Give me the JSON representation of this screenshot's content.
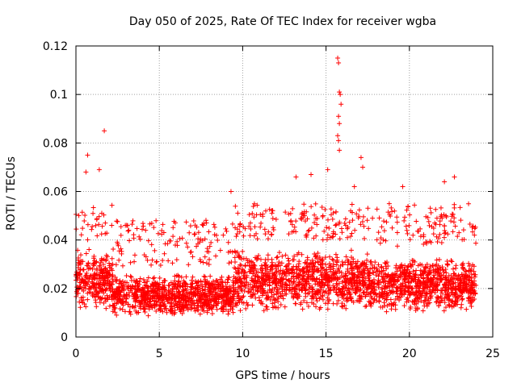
{
  "chart_data": {
    "type": "scatter",
    "title": "Day 050 of 2025, Rate Of TEC Index for receiver wgba",
    "xlabel": "GPS time / hours",
    "ylabel": "ROTI / TECUs",
    "xlim": [
      0,
      25
    ],
    "ylim": [
      0,
      0.12
    ],
    "xticks": [
      0,
      5,
      10,
      15,
      20,
      25
    ],
    "xtick_labels": [
      "0",
      "5",
      "10",
      "15",
      "20",
      "25"
    ],
    "yticks": [
      0,
      0.02,
      0.04,
      0.06,
      0.08,
      0.1,
      0.12
    ],
    "ytick_labels": [
      "0",
      "0.02",
      "0.04",
      "0.06",
      "0.08",
      "0.1",
      "0.12"
    ],
    "grid": true,
    "marker": "+",
    "marker_color": "#ff0000",
    "series": [
      {
        "name": "ROTI",
        "x_range": [
          0,
          24
        ],
        "typical_band": [
          0.005,
          0.035
        ],
        "notable_points": [
          {
            "x": 1.7,
            "y": 0.085
          },
          {
            "x": 0.7,
            "y": 0.075
          },
          {
            "x": 0.6,
            "y": 0.068
          },
          {
            "x": 1.4,
            "y": 0.069
          },
          {
            "x": 9.3,
            "y": 0.06
          },
          {
            "x": 13.2,
            "y": 0.066
          },
          {
            "x": 14.1,
            "y": 0.067
          },
          {
            "x": 15.1,
            "y": 0.069
          },
          {
            "x": 15.7,
            "y": 0.115
          },
          {
            "x": 15.75,
            "y": 0.113
          },
          {
            "x": 15.8,
            "y": 0.101
          },
          {
            "x": 15.85,
            "y": 0.1
          },
          {
            "x": 15.9,
            "y": 0.096
          },
          {
            "x": 15.75,
            "y": 0.091
          },
          {
            "x": 15.8,
            "y": 0.088
          },
          {
            "x": 15.7,
            "y": 0.083
          },
          {
            "x": 15.75,
            "y": 0.081
          },
          {
            "x": 15.8,
            "y": 0.077
          },
          {
            "x": 17.1,
            "y": 0.074
          },
          {
            "x": 17.2,
            "y": 0.07
          },
          {
            "x": 16.7,
            "y": 0.062
          },
          {
            "x": 19.6,
            "y": 0.062
          },
          {
            "x": 22.7,
            "y": 0.066
          },
          {
            "x": 22.1,
            "y": 0.064
          },
          {
            "x": 23.9,
            "y": 0.042
          }
        ]
      }
    ]
  }
}
